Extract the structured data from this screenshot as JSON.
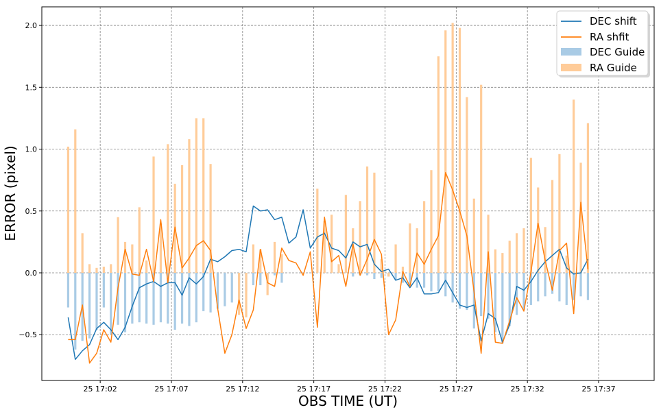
{
  "chart_data": {
    "type": "line",
    "xlabel": "OBS TIME (UT)",
    "ylabel": "ERROR (pixel)",
    "x_tick_labels": [
      "25 17:02",
      "25 17:07",
      "25 17:12",
      "25 17:17",
      "25 17:22",
      "25 17:27",
      "25 17:32",
      "25 17:37"
    ],
    "x_ticks_minutes": [
      2,
      7,
      12,
      17,
      22,
      27,
      32,
      37
    ],
    "y_ticks": [
      -0.5,
      0.0,
      0.5,
      1.0,
      1.5,
      2.0
    ],
    "y_tick_labels": [
      "−0.5",
      "0.0",
      "0.5",
      "1.0",
      "1.5",
      "2.0"
    ],
    "xlim": [
      -2.1,
      40.9
    ],
    "ylim": [
      -0.87,
      2.15
    ],
    "grid": true,
    "legend_position": "upper right",
    "x_start_minute": -0.25,
    "x_step_minutes": 0.5,
    "colors": {
      "dec": "#1f77b4",
      "ra": "#ff7f0e",
      "dec_bar": "#a9cbe5",
      "ra_bar": "#ffcc99"
    },
    "series": [
      {
        "name": "DEC shift",
        "kind": "line",
        "color": "#1f77b4",
        "values": [
          -0.36,
          -0.7,
          -0.63,
          -0.58,
          -0.45,
          -0.4,
          -0.46,
          -0.54,
          -0.44,
          -0.27,
          -0.12,
          -0.09,
          -0.07,
          -0.11,
          -0.08,
          -0.08,
          -0.18,
          -0.04,
          -0.09,
          -0.03,
          0.11,
          0.09,
          0.13,
          0.18,
          0.19,
          0.17,
          0.54,
          0.5,
          0.51,
          0.43,
          0.45,
          0.24,
          0.29,
          0.51,
          0.2,
          0.29,
          0.32,
          0.2,
          0.18,
          0.12,
          0.25,
          0.21,
          0.23,
          0.07,
          0.01,
          0.03,
          -0.06,
          -0.04,
          -0.12,
          -0.04,
          -0.17,
          -0.17,
          -0.16,
          -0.06,
          -0.16,
          -0.26,
          -0.28,
          -0.26,
          -0.55,
          -0.33,
          -0.37,
          -0.56,
          -0.42,
          -0.11,
          -0.14,
          -0.07,
          0.02,
          0.09,
          0.14,
          0.19,
          0.04,
          -0.01,
          0.0,
          0.11
        ]
      },
      {
        "name": "RA shfit",
        "kind": "line",
        "color": "#ff7f0e",
        "values": [
          -0.54,
          -0.54,
          -0.26,
          -0.73,
          -0.65,
          -0.46,
          -0.56,
          -0.12,
          0.19,
          -0.01,
          -0.02,
          0.19,
          -0.07,
          0.43,
          -0.08,
          0.37,
          0.04,
          0.12,
          0.22,
          0.26,
          0.18,
          -0.29,
          -0.65,
          -0.5,
          -0.22,
          -0.45,
          -0.3,
          0.19,
          -0.08,
          -0.11,
          0.2,
          0.1,
          0.08,
          -0.02,
          0.17,
          -0.44,
          0.45,
          0.09,
          0.14,
          -0.11,
          0.23,
          -0.02,
          0.11,
          0.27,
          0.15,
          -0.5,
          -0.38,
          0.01,
          -0.11,
          0.16,
          0.07,
          0.19,
          0.3,
          0.81,
          0.67,
          0.5,
          0.3,
          -0.15,
          -0.65,
          0.17,
          -0.56,
          -0.57,
          -0.39,
          -0.2,
          -0.31,
          0.01,
          0.4,
          0.1,
          -0.14,
          0.18,
          0.24,
          -0.33,
          0.57,
          0.03
        ]
      },
      {
        "name": "DEC Guide",
        "kind": "bar",
        "color": "#a9cbe5",
        "values": [
          -0.28,
          -0.62,
          -0.55,
          -0.53,
          -0.46,
          -0.28,
          -0.5,
          -0.42,
          -0.48,
          -0.41,
          -0.4,
          -0.41,
          -0.42,
          -0.4,
          -0.41,
          -0.46,
          -0.41,
          -0.43,
          -0.4,
          -0.31,
          -0.32,
          -0.29,
          -0.27,
          -0.24,
          -0.2,
          -0.15,
          -0.1,
          -0.1,
          -0.05,
          -0.02,
          -0.08,
          0,
          0,
          0,
          0,
          0,
          0,
          0,
          0,
          0,
          -0.03,
          -0.02,
          -0.02,
          -0.05,
          -0.04,
          -0.03,
          -0.06,
          -0.08,
          -0.1,
          -0.12,
          -0.12,
          -0.15,
          -0.15,
          -0.19,
          -0.24,
          -0.29,
          -0.3,
          -0.45,
          -0.35,
          -0.37,
          -0.48,
          -0.57,
          -0.43,
          -0.34,
          -0.3,
          -0.26,
          -0.23,
          -0.19,
          -0.17,
          -0.23,
          -0.26,
          -0.22,
          -0.19,
          -0.22
        ]
      },
      {
        "name": "RA Guide",
        "kind": "bar",
        "color": "#ffcc99",
        "values": [
          1.02,
          1.16,
          0.32,
          0.07,
          0.04,
          0.05,
          0.07,
          0.45,
          0.25,
          0.23,
          0.53,
          0.1,
          0.94,
          0.4,
          1.04,
          0.72,
          0.87,
          1.08,
          1.25,
          1.25,
          0.88,
          0,
          0,
          0,
          -0.34,
          -0.36,
          0.23,
          0.19,
          -0.18,
          0.25,
          0.15,
          0,
          0,
          0,
          0,
          0.68,
          0.42,
          0.47,
          0.07,
          0.63,
          0.36,
          0.58,
          0.86,
          0.81,
          0.11,
          -0.03,
          0.23,
          0.05,
          0.4,
          0.36,
          0.58,
          0.83,
          1.75,
          1.96,
          2.02,
          1.98,
          1.42,
          0.6,
          1.52,
          0.47,
          0.19,
          0.16,
          0.26,
          0.32,
          0.36,
          0.93,
          0.69,
          0.37,
          0.75,
          0.96,
          0.14,
          1.4,
          0.89,
          1.21
        ]
      }
    ]
  }
}
